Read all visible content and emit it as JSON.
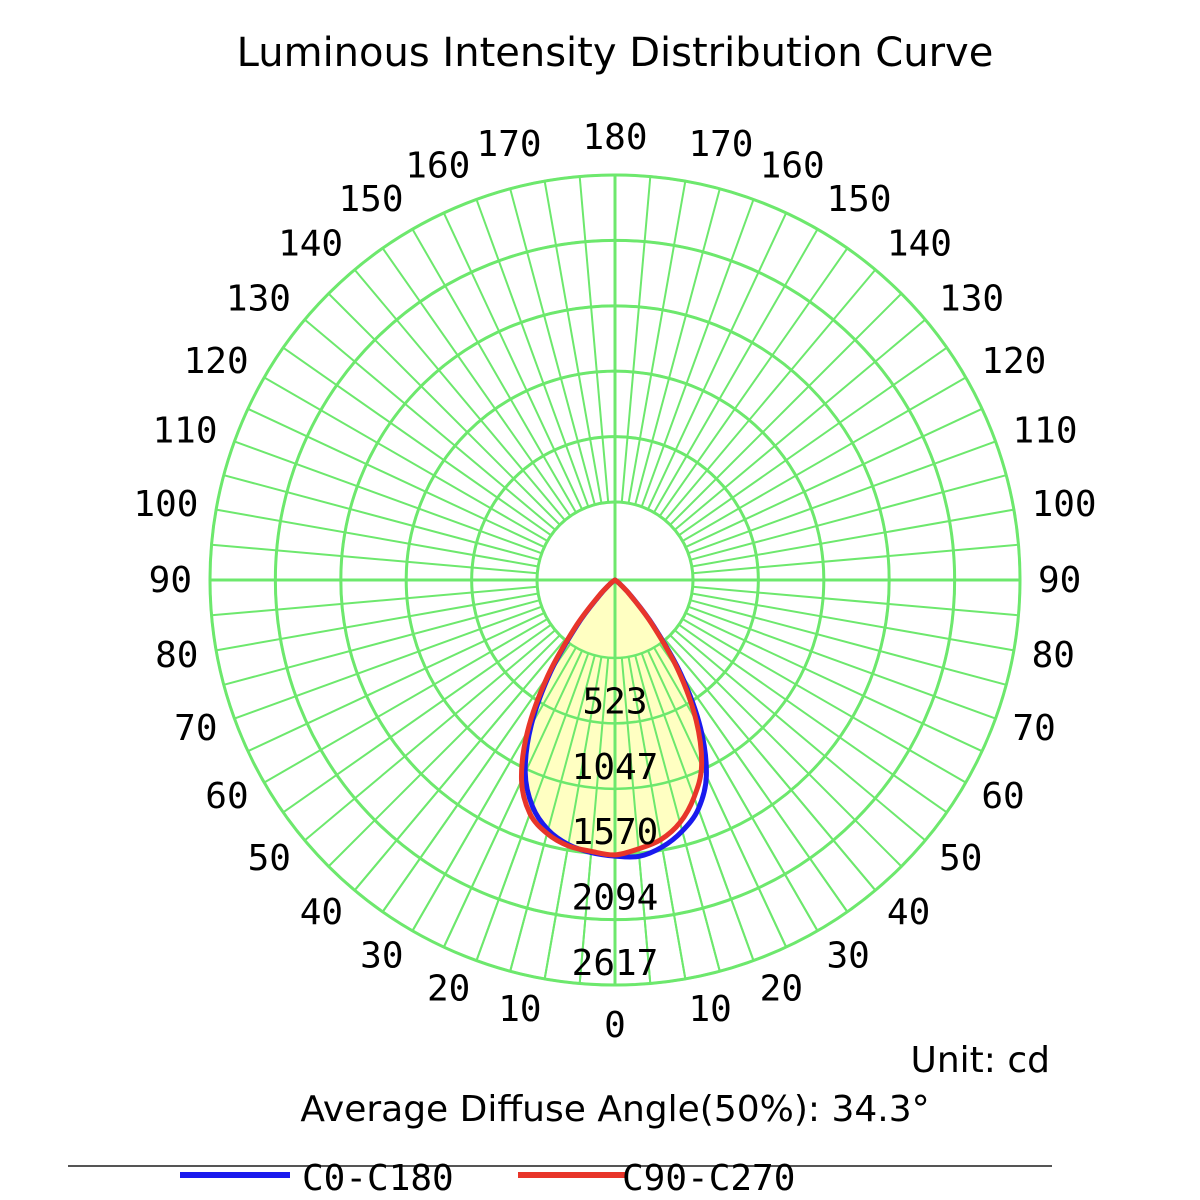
{
  "chart_data": {
    "type": "polar",
    "title": "Luminous Intensity Distribution Curve",
    "unit_label": "Unit: cd",
    "info_text": "Average Diffuse Angle(50%): 34.3°",
    "radial_ticks": [
      523,
      1047,
      1570,
      2094,
      2617
    ],
    "radial_max": 2617,
    "angle_labels_left": [
      {
        "angle": 0,
        "label": "0"
      },
      {
        "angle": 10,
        "label": "10"
      },
      {
        "angle": 20,
        "label": "20"
      },
      {
        "angle": 30,
        "label": "30"
      },
      {
        "angle": 40,
        "label": "40"
      },
      {
        "angle": 50,
        "label": "50"
      },
      {
        "angle": 60,
        "label": "60"
      },
      {
        "angle": 70,
        "label": "70"
      },
      {
        "angle": 80,
        "label": "80"
      },
      {
        "angle": 90,
        "label": "90"
      },
      {
        "angle": 100,
        "label": "100"
      },
      {
        "angle": 110,
        "label": "110"
      },
      {
        "angle": 120,
        "label": "120"
      },
      {
        "angle": 130,
        "label": "130"
      },
      {
        "angle": 140,
        "label": "140"
      },
      {
        "angle": 150,
        "label": "150"
      },
      {
        "angle": 160,
        "label": "160"
      },
      {
        "angle": 170,
        "label": "170"
      },
      {
        "angle": 180,
        "label": "180"
      }
    ],
    "angle_labels_right": [
      {
        "angle": 10,
        "label": "10"
      },
      {
        "angle": 20,
        "label": "20"
      },
      {
        "angle": 30,
        "label": "30"
      },
      {
        "angle": 40,
        "label": "40"
      },
      {
        "angle": 50,
        "label": "50"
      },
      {
        "angle": 60,
        "label": "60"
      },
      {
        "angle": 70,
        "label": "70"
      },
      {
        "angle": 80,
        "label": "80"
      },
      {
        "angle": 90,
        "label": "90"
      },
      {
        "angle": 100,
        "label": "100"
      },
      {
        "angle": 110,
        "label": "110"
      },
      {
        "angle": 120,
        "label": "120"
      },
      {
        "angle": 130,
        "label": "130"
      },
      {
        "angle": 140,
        "label": "140"
      },
      {
        "angle": 150,
        "label": "150"
      },
      {
        "angle": 160,
        "label": "160"
      },
      {
        "angle": 170,
        "label": "170"
      }
    ],
    "angle_unit": "degrees",
    "series": [
      {
        "name": "C0-C180",
        "color": "#1a1aee",
        "left_angles": [
          0,
          5,
          10,
          15,
          20,
          25,
          30,
          35,
          40,
          45,
          50,
          55,
          60
        ],
        "left_values": [
          2210,
          2190,
          2150,
          2070,
          1930,
          1700,
          1340,
          900,
          470,
          180,
          60,
          20,
          0
        ],
        "right_angles": [
          0,
          5,
          10,
          15,
          20,
          25,
          30,
          35,
          40,
          45,
          50,
          55,
          60
        ],
        "right_values": [
          2210,
          2220,
          2170,
          2080,
          1950,
          1730,
          1370,
          920,
          480,
          190,
          60,
          20,
          0
        ]
      },
      {
        "name": "C90-C270",
        "color": "#e8352a",
        "left_angles": [
          0,
          5,
          10,
          15,
          20,
          25,
          30,
          35,
          40,
          45,
          50,
          55,
          60
        ],
        "left_values": [
          2200,
          2180,
          2160,
          2100,
          1990,
          1770,
          1400,
          940,
          500,
          200,
          70,
          25,
          0
        ],
        "right_angles": [
          0,
          5,
          10,
          15,
          20,
          25,
          30,
          35,
          40,
          45,
          50,
          55,
          60
        ],
        "right_values": [
          2200,
          2160,
          2110,
          2010,
          1850,
          1640,
          1300,
          880,
          460,
          180,
          60,
          20,
          0
        ]
      }
    ],
    "fill_color": "#ffffc2",
    "grid_color": "#6de86d",
    "legend_position": "bottom"
  }
}
